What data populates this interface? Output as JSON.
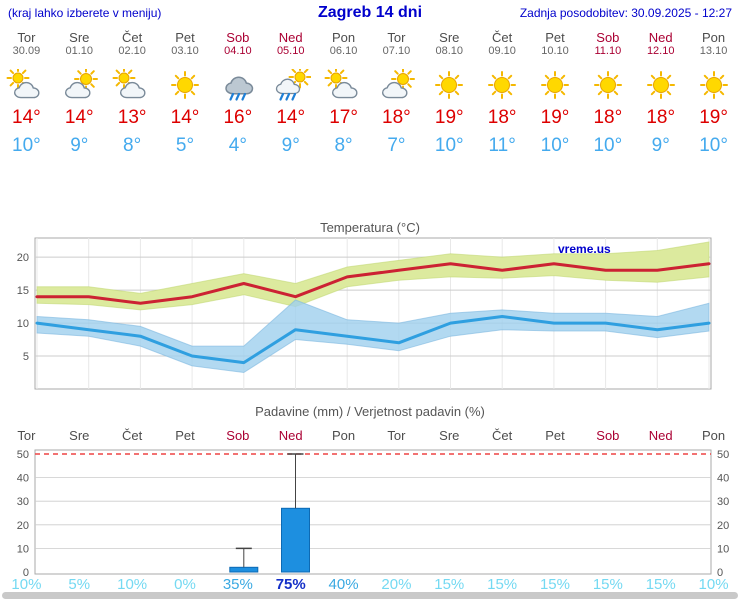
{
  "header": {
    "left_note": "(kraj lahko izberete v meniju)",
    "title": "Zagreb 14 dni",
    "updated": "Zadnja posodobitev: 30.09.2025 - 12:27"
  },
  "labels": {
    "degree": "°"
  },
  "days": [
    {
      "name": "Tor",
      "date": "30.09",
      "weekend": false,
      "icon": "cloud-sun",
      "tmax": "14",
      "tmin": "10"
    },
    {
      "name": "Sre",
      "date": "01.10",
      "weekend": false,
      "icon": "sun-cloud",
      "tmax": "14",
      "tmin": "9"
    },
    {
      "name": "Čet",
      "date": "02.10",
      "weekend": false,
      "icon": "cloud-sun",
      "tmax": "13",
      "tmin": "8"
    },
    {
      "name": "Pet",
      "date": "03.10",
      "weekend": false,
      "icon": "sun",
      "tmax": "14",
      "tmin": "5"
    },
    {
      "name": "Sob",
      "date": "04.10",
      "weekend": true,
      "icon": "rain",
      "tmax": "16",
      "tmin": "4"
    },
    {
      "name": "Ned",
      "date": "05.10",
      "weekend": true,
      "icon": "sun-rain",
      "tmax": "14",
      "tmin": "9"
    },
    {
      "name": "Pon",
      "date": "06.10",
      "weekend": false,
      "icon": "cloud-sun",
      "tmax": "17",
      "tmin": "8"
    },
    {
      "name": "Tor",
      "date": "07.10",
      "weekend": false,
      "icon": "sun-cloud",
      "tmax": "18",
      "tmin": "7"
    },
    {
      "name": "Sre",
      "date": "08.10",
      "weekend": false,
      "icon": "sun",
      "tmax": "19",
      "tmin": "10"
    },
    {
      "name": "Čet",
      "date": "09.10",
      "weekend": false,
      "icon": "sun",
      "tmax": "18",
      "tmin": "11"
    },
    {
      "name": "Pet",
      "date": "10.10",
      "weekend": false,
      "icon": "sun",
      "tmax": "19",
      "tmin": "10"
    },
    {
      "name": "Sob",
      "date": "11.10",
      "weekend": true,
      "icon": "sun",
      "tmax": "18",
      "tmin": "10"
    },
    {
      "name": "Ned",
      "date": "12.10",
      "weekend": true,
      "icon": "sun",
      "tmax": "18",
      "tmin": "9"
    },
    {
      "name": "Pon",
      "date": "13.10",
      "weekend": false,
      "icon": "sun",
      "tmax": "19",
      "tmin": "10"
    }
  ],
  "chart_data": [
    {
      "type": "line",
      "title": "Temperatura (°C)",
      "watermark": "vreme.us",
      "categories": [
        "Tor",
        "Sre",
        "Čet",
        "Pet",
        "Sob",
        "Ned",
        "Pon",
        "Tor",
        "Sre",
        "Čet",
        "Pet",
        "Sob",
        "Ned",
        "Pon"
      ],
      "ylim": [
        0,
        22.9
      ],
      "yticks": [
        5,
        10,
        15,
        20
      ],
      "grid": true,
      "legend": "none",
      "series": [
        {
          "name": "max",
          "values": [
            14,
            14,
            13,
            14,
            16,
            14,
            17,
            18,
            19,
            18,
            19,
            18,
            18,
            19
          ],
          "band_high": [
            15.5,
            15.5,
            14.5,
            16,
            17.5,
            16,
            18.5,
            19.5,
            20.5,
            20,
            20.5,
            20.5,
            21,
            22.3
          ],
          "band_low": [
            13,
            12.8,
            12,
            12.8,
            14.3,
            12.5,
            15.5,
            16.5,
            17,
            16.8,
            17.2,
            16.5,
            16.2,
            17
          ]
        },
        {
          "name": "min",
          "values": [
            10,
            9,
            8,
            5,
            4,
            9,
            8,
            7,
            10,
            11,
            10,
            10,
            9,
            10
          ],
          "band_high": [
            11,
            10.5,
            9.5,
            6.5,
            6.5,
            13.5,
            10.5,
            10,
            11.5,
            12,
            11.5,
            11.5,
            11,
            13
          ],
          "band_low": [
            8.5,
            8,
            6.5,
            3.5,
            2.5,
            7.5,
            6.8,
            5.8,
            8,
            9,
            8.8,
            8.8,
            7.8,
            8.8
          ]
        }
      ]
    },
    {
      "type": "bar",
      "title": "Padavine (mm) / Verjetnost padavin (%)",
      "categories": [
        "Tor",
        "Sre",
        "Čet",
        "Pet",
        "Sob",
        "Ned",
        "Pon",
        "Tor",
        "Sre",
        "Čet",
        "Pet",
        "Sob",
        "Ned",
        "Pon"
      ],
      "ylim": [
        0,
        53
      ],
      "yticks": [
        0,
        10,
        20,
        30,
        40,
        50
      ],
      "threshold_line": 50,
      "values": [
        0,
        0,
        0,
        0,
        2,
        27,
        0,
        0,
        0,
        0,
        0,
        0,
        0,
        0
      ],
      "whisker_high": [
        0,
        0,
        0,
        0,
        10,
        50,
        0,
        0,
        0,
        0,
        0,
        0,
        0,
        0
      ],
      "probabilities": [
        "10%",
        "5%",
        "10%",
        "0%",
        "35%",
        "75%",
        "40%",
        "20%",
        "15%",
        "15%",
        "15%",
        "15%",
        "15%",
        "10%"
      ]
    }
  ],
  "colors": {
    "header_blue": "#0000cc",
    "weekend_red": "#aa0033",
    "weekday_gray": "#4d4d4d",
    "date_gray": "#666666",
    "tmax_red": "#dd0000",
    "tmin_blue": "#44aaee",
    "chart_title_gray": "#555555",
    "chart_border": "#aaaaaa",
    "grid_h": "#cccccc",
    "grid_v": "#e8e8e8",
    "axis_text": "#555555",
    "band_green": "#dcea9e",
    "band_green_edge": "#c3d877",
    "band_blue": "#9fd0ee",
    "band_blue_edge": "#7db8e0",
    "line_red": "#cc2233",
    "line_blue": "#2f9fe0",
    "watermark_blue": "#0000cc",
    "dashed_red": "#ee4444",
    "bar_blue": "#1d8fe0",
    "bar_stroke": "#0d6ab4",
    "whisker": "#444444",
    "prob_low": "#74d9f2",
    "prob_mid": "#3aa9e2",
    "prob_high": "#1430c8",
    "scrollbar_gray": "#c9c9c9",
    "sun_fill": "#ffd800",
    "sun_stroke": "#e8a300",
    "sun_ray": "#f5b800",
    "cloud_fill": "#f2f6f9",
    "cloud_fill_dark": "#bcc8d2",
    "cloud_stroke": "#7a8a99",
    "rain_blue": "#1e7fd6"
  }
}
